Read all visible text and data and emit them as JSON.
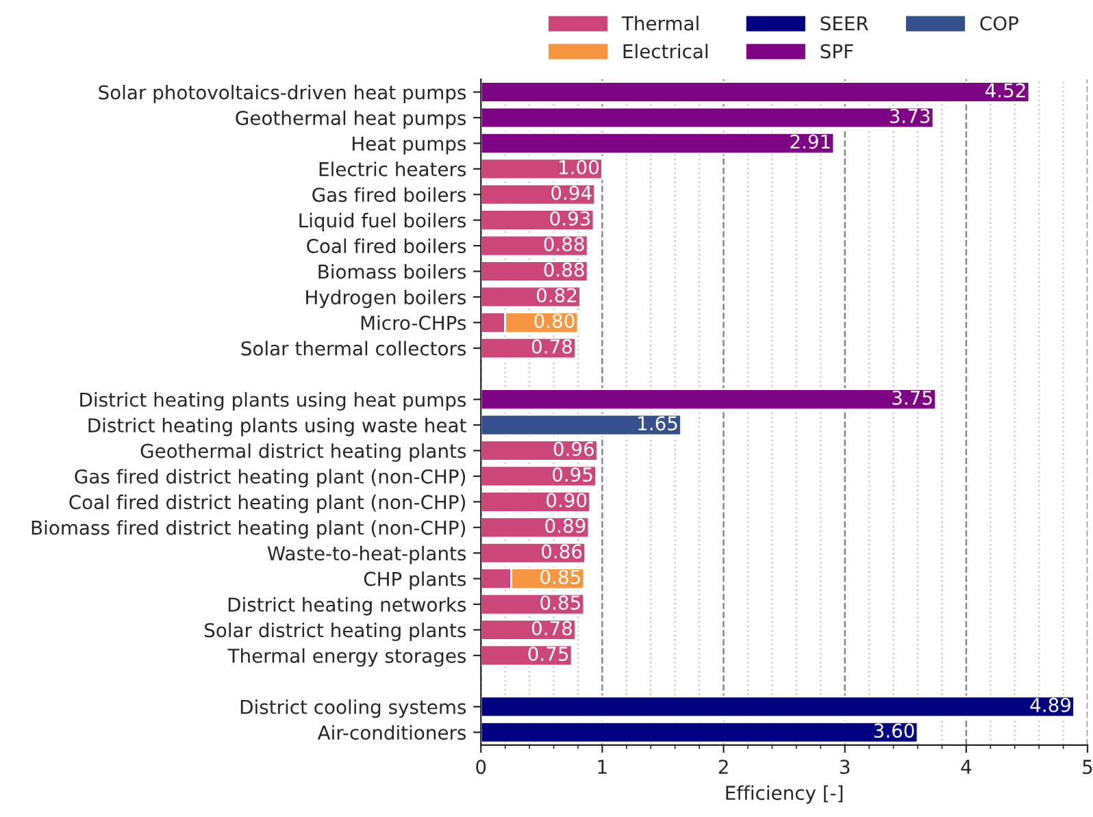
{
  "chart_data": {
    "type": "bar",
    "orientation": "horizontal",
    "stacked": true,
    "xlabel": "Efficiency [-]",
    "categories": [
      "Solar photovoltaics-driven heat pumps",
      "Geothermal heat pumps",
      "Heat pumps",
      "Electric heaters",
      "Gas fired boilers",
      "Liquid fuel boilers",
      "Coal fired boilers",
      "Biomass boilers",
      "Hydrogen boilers",
      "Micro-CHPs",
      "Solar thermal collectors",
      null,
      "District heating plants using heat pumps",
      "District heating plants using waste heat",
      "Geothermal district heating plants",
      "Gas fired district heating plant (non-CHP)",
      "Coal fired district heating plant (non-CHP)",
      "Biomass fired district heating plant (non-CHP)",
      "Waste-to-heat-plants",
      "CHP plants",
      "District heating networks",
      "Solar district heating plants",
      "Thermal energy storages",
      null,
      "District cooling systems",
      "Air-conditioners"
    ],
    "series": [
      {
        "name": "Thermal",
        "color": "#cc4778",
        "values": [
          null,
          null,
          null,
          1.0,
          0.94,
          0.93,
          0.88,
          0.88,
          0.82,
          0.2,
          0.78,
          null,
          null,
          null,
          0.96,
          0.95,
          0.9,
          0.89,
          0.86,
          0.25,
          0.85,
          0.78,
          0.75,
          null,
          null,
          null
        ],
        "value_labels": [
          null,
          null,
          null,
          "1.00",
          "0.94",
          "0.93",
          "0.88",
          "0.88",
          "0.82",
          null,
          "0.78",
          null,
          null,
          null,
          "0.96",
          "0.95",
          "0.90",
          "0.89",
          "0.86",
          null,
          "0.85",
          "0.78",
          "0.75",
          null,
          null,
          null
        ]
      },
      {
        "name": "Electrical",
        "color": "#f89540",
        "values": [
          null,
          null,
          null,
          null,
          null,
          null,
          null,
          null,
          null,
          0.6,
          null,
          null,
          null,
          null,
          null,
          null,
          null,
          null,
          null,
          0.6,
          null,
          null,
          null,
          null,
          null,
          null
        ],
        "value_labels": [
          null,
          null,
          null,
          null,
          null,
          null,
          null,
          null,
          null,
          null,
          null,
          null,
          null,
          null,
          null,
          null,
          null,
          null,
          null,
          null,
          null,
          null,
          null,
          null,
          null,
          null
        ]
      },
      {
        "name": "SEER",
        "color": "#000080",
        "values": [
          null,
          null,
          null,
          null,
          null,
          null,
          null,
          null,
          null,
          null,
          null,
          null,
          null,
          null,
          null,
          null,
          null,
          null,
          null,
          null,
          null,
          null,
          null,
          null,
          4.89,
          3.6
        ],
        "value_labels": [
          null,
          null,
          null,
          null,
          null,
          null,
          null,
          null,
          null,
          null,
          null,
          null,
          null,
          null,
          null,
          null,
          null,
          null,
          null,
          null,
          null,
          null,
          null,
          null,
          "4.89",
          "3.60"
        ]
      },
      {
        "name": "SPF",
        "color": "#7e0485",
        "values": [
          4.52,
          3.73,
          2.91,
          null,
          null,
          null,
          null,
          null,
          null,
          null,
          null,
          null,
          3.75,
          null,
          null,
          null,
          null,
          null,
          null,
          null,
          null,
          null,
          null,
          null,
          null,
          null
        ],
        "value_labels": [
          "4.52",
          "3.73",
          "2.91",
          null,
          null,
          null,
          null,
          null,
          null,
          null,
          null,
          null,
          "3.75",
          null,
          null,
          null,
          null,
          null,
          null,
          null,
          null,
          null,
          null,
          null,
          null,
          null
        ]
      },
      {
        "name": "COP",
        "color": "#35508c",
        "values": [
          null,
          null,
          null,
          null,
          null,
          null,
          null,
          null,
          null,
          null,
          null,
          null,
          null,
          1.65,
          null,
          null,
          null,
          null,
          null,
          null,
          null,
          null,
          null,
          null,
          null,
          null
        ],
        "value_labels": [
          null,
          null,
          null,
          null,
          null,
          null,
          null,
          null,
          null,
          null,
          null,
          null,
          null,
          "1.65",
          null,
          null,
          null,
          null,
          null,
          null,
          null,
          null,
          null,
          null,
          null,
          null
        ]
      }
    ],
    "totals": [
      null,
      null,
      null,
      null,
      null,
      null,
      null,
      null,
      null,
      "0.80",
      null,
      null,
      null,
      null,
      null,
      null,
      null,
      null,
      null,
      "0.85",
      null,
      null,
      null,
      null,
      null,
      null
    ],
    "xlim": [
      0,
      5
    ],
    "xticks": [
      0,
      {
        "value": 0.2,
        "label": null
      },
      {
        "value": 0.4,
        "label": null
      },
      {
        "value": 0.6,
        "label": null
      },
      {
        "value": 0.8,
        "label": null
      },
      1,
      {
        "value": 1.2,
        "label": null
      },
      {
        "value": 1.4,
        "label": null
      },
      {
        "value": 1.6,
        "label": null
      },
      {
        "value": 1.8,
        "label": null
      },
      2,
      {
        "value": 2.2,
        "label": null
      },
      {
        "value": 2.4,
        "label": null
      },
      {
        "value": 2.6,
        "label": null
      },
      {
        "value": 2.8,
        "label": null
      },
      3,
      {
        "value": 3.2,
        "label": null
      },
      {
        "value": 3.4,
        "label": null
      },
      {
        "value": 3.6,
        "label": null
      },
      {
        "value": 3.8,
        "label": null
      },
      4,
      {
        "value": 4.2,
        "label": null
      },
      {
        "value": 4.4,
        "label": null
      },
      {
        "value": 4.6,
        "label": null
      },
      {
        "value": 4.8,
        "label": null
      },
      5
    ],
    "grid": "x",
    "legend": "top"
  }
}
